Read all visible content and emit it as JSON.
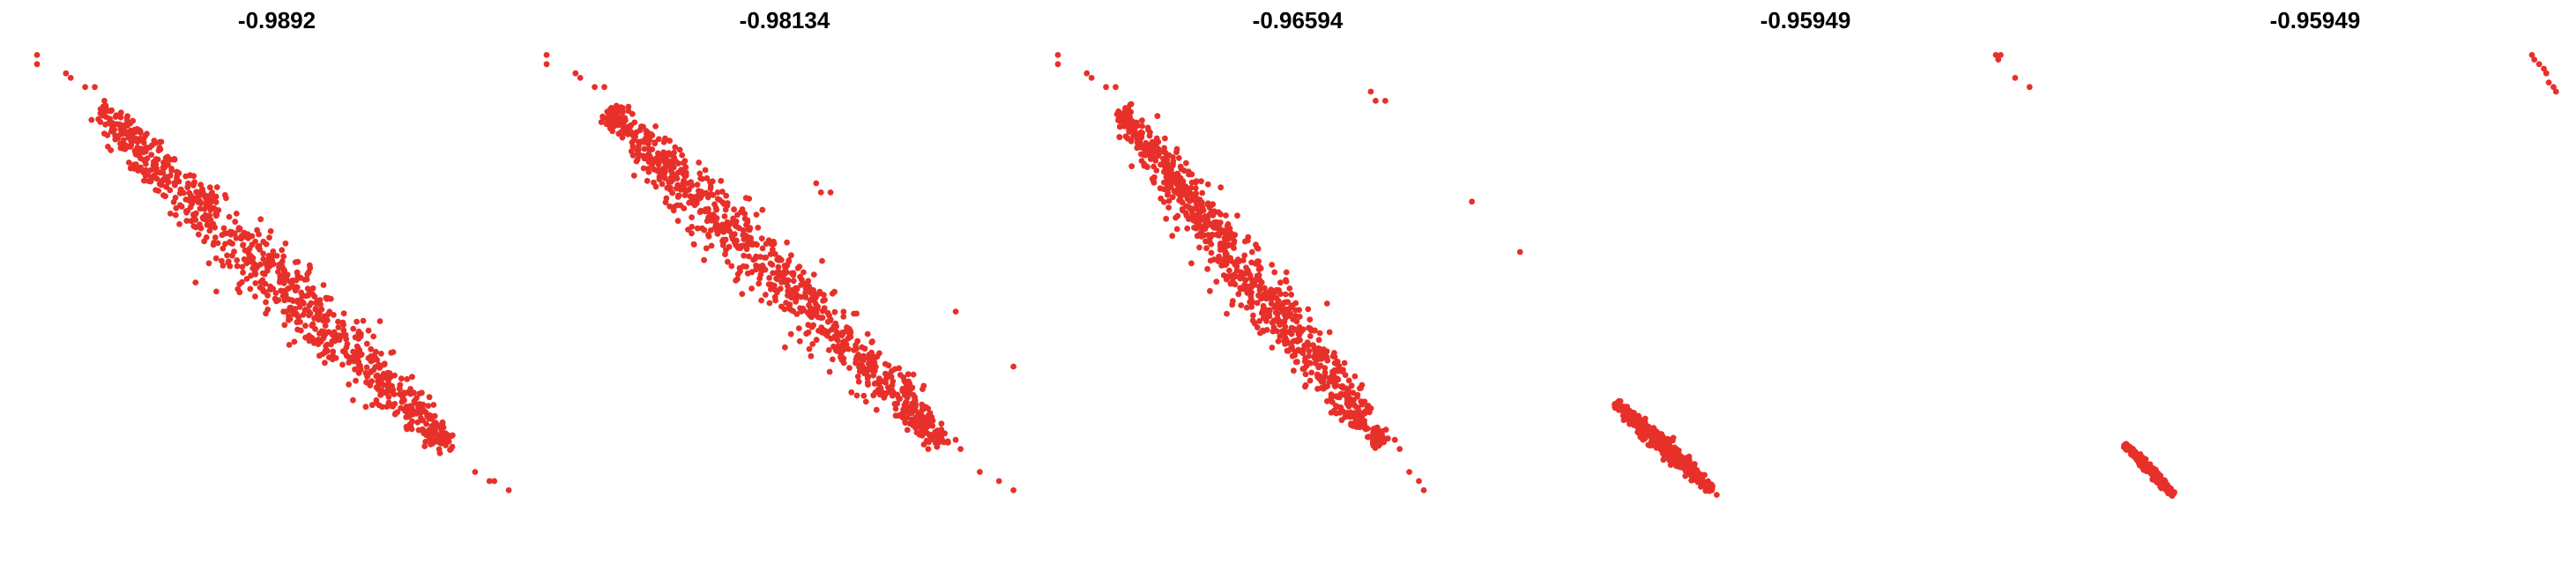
{
  "chart_data": [
    {
      "type": "scatter",
      "title": "-0.9892",
      "color": "#e8302a",
      "xlim": [
        0,
        1
      ],
      "ylim": [
        0,
        1
      ],
      "core": {
        "x_start": 0.13,
        "y_start": 0.86,
        "x_end": 0.86,
        "y_end": 0.12,
        "count": 900,
        "spread": 0.045
      },
      "outliers": [
        [
          0.0,
          0.98
        ],
        [
          0.0,
          0.96
        ],
        [
          0.06,
          0.94
        ],
        [
          0.07,
          0.93
        ],
        [
          0.1,
          0.91
        ],
        [
          0.12,
          0.91
        ],
        [
          0.14,
          0.88
        ],
        [
          0.84,
          0.14
        ],
        [
          0.86,
          0.12
        ],
        [
          0.91,
          0.07
        ],
        [
          0.94,
          0.05
        ],
        [
          0.95,
          0.05
        ],
        [
          0.98,
          0.03
        ]
      ]
    },
    {
      "type": "scatter",
      "title": "-0.98134",
      "color": "#e8302a",
      "xlim": [
        0,
        1
      ],
      "ylim": [
        0,
        1
      ],
      "core": {
        "x_start": 0.13,
        "y_start": 0.86,
        "x_end": 0.83,
        "y_end": 0.13,
        "count": 900,
        "spread": 0.045
      },
      "outliers": [
        [
          0.0,
          0.98
        ],
        [
          0.0,
          0.96
        ],
        [
          0.06,
          0.94
        ],
        [
          0.07,
          0.93
        ],
        [
          0.1,
          0.91
        ],
        [
          0.12,
          0.91
        ],
        [
          0.56,
          0.7
        ],
        [
          0.57,
          0.68
        ],
        [
          0.59,
          0.68
        ],
        [
          0.85,
          0.42
        ],
        [
          0.97,
          0.3
        ],
        [
          0.85,
          0.14
        ],
        [
          0.86,
          0.12
        ],
        [
          0.9,
          0.07
        ],
        [
          0.94,
          0.05
        ],
        [
          0.97,
          0.03
        ]
      ]
    },
    {
      "type": "scatter",
      "title": "-0.96594",
      "color": "#e8302a",
      "xlim": [
        0,
        1
      ],
      "ylim": [
        0,
        1
      ],
      "core": {
        "x_start": 0.13,
        "y_start": 0.86,
        "x_end": 0.67,
        "y_end": 0.13,
        "count": 900,
        "spread": 0.04
      },
      "outliers": [
        [
          0.0,
          0.98
        ],
        [
          0.0,
          0.96
        ],
        [
          0.06,
          0.94
        ],
        [
          0.07,
          0.93
        ],
        [
          0.1,
          0.91
        ],
        [
          0.12,
          0.91
        ],
        [
          0.65,
          0.9
        ],
        [
          0.66,
          0.88
        ],
        [
          0.68,
          0.88
        ],
        [
          0.86,
          0.66
        ],
        [
          0.96,
          0.55
        ],
        [
          0.7,
          0.14
        ],
        [
          0.71,
          0.12
        ],
        [
          0.73,
          0.07
        ],
        [
          0.75,
          0.05
        ],
        [
          0.76,
          0.03
        ]
      ]
    },
    {
      "type": "scatter",
      "title": "-0.95949",
      "color": "#e8302a",
      "xlim": [
        0,
        1
      ],
      "ylim": [
        0,
        1
      ],
      "core": {
        "x_start": 0.1,
        "y_start": 0.22,
        "x_end": 0.3,
        "y_end": 0.03,
        "count": 500,
        "spread": 0.012
      },
      "outliers": [
        [
          0.89,
          0.98
        ],
        [
          0.895,
          0.97
        ],
        [
          0.9,
          0.98
        ],
        [
          0.93,
          0.93
        ],
        [
          0.96,
          0.91
        ],
        [
          0.31,
          0.02
        ],
        [
          0.3,
          0.03
        ]
      ]
    },
    {
      "type": "scatter",
      "title": "-0.95949",
      "color": "#e8302a",
      "xlim": [
        0,
        1
      ],
      "ylim": [
        0,
        1
      ],
      "core": {
        "x_start": 0.1,
        "y_start": 0.13,
        "x_end": 0.2,
        "y_end": 0.02,
        "count": 400,
        "spread": 0.006
      },
      "outliers": [
        [
          0.945,
          0.98
        ],
        [
          0.95,
          0.97
        ],
        [
          0.96,
          0.96
        ],
        [
          0.97,
          0.95
        ],
        [
          0.975,
          0.94
        ],
        [
          0.98,
          0.92
        ],
        [
          0.99,
          0.91
        ],
        [
          0.995,
          0.9
        ]
      ]
    }
  ]
}
